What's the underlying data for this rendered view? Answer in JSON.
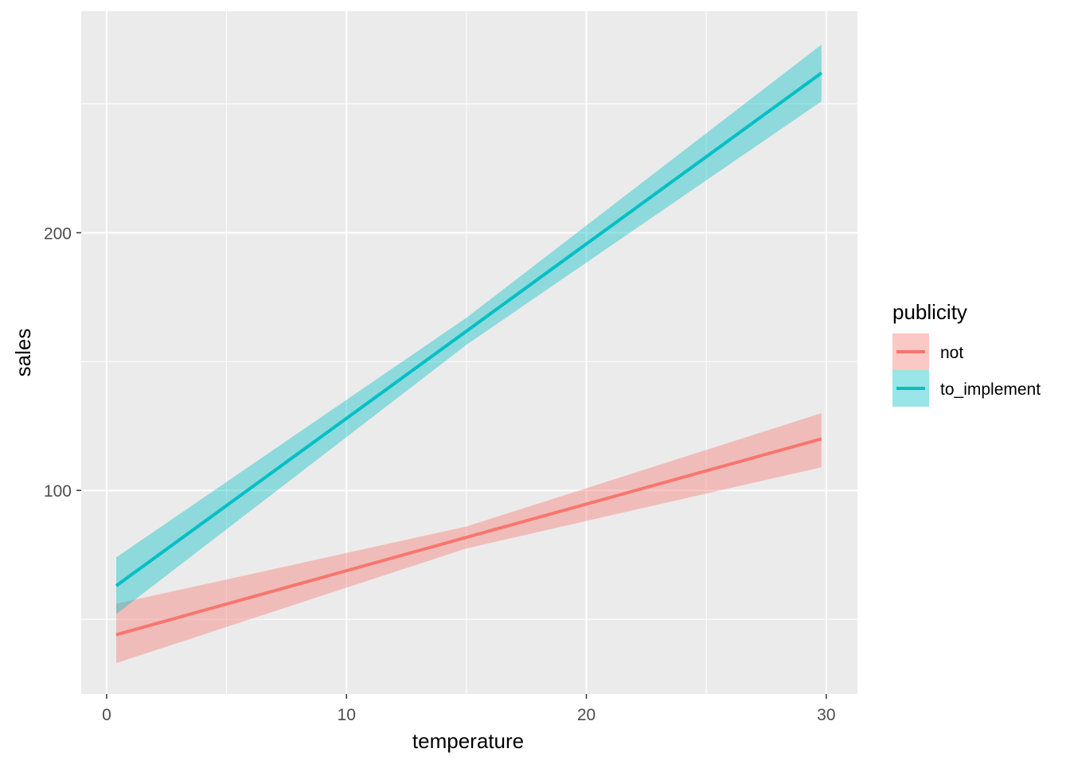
{
  "chart_data": {
    "type": "line",
    "title": "",
    "xlabel": "temperature",
    "ylabel": "sales",
    "xlim": [
      -1.06,
      31.3
    ],
    "ylim": [
      21,
      286
    ],
    "x_ticks": [
      0,
      10,
      20,
      30
    ],
    "x_tick_labels": [
      "0",
      "10",
      "20",
      "30"
    ],
    "x_minor": [
      5,
      15,
      25
    ],
    "y_ticks": [
      100,
      200
    ],
    "y_tick_labels": [
      "100",
      "200"
    ],
    "y_minor": [
      50,
      150,
      250
    ],
    "grid": true,
    "legend": {
      "title": "publicity",
      "placement": "right"
    },
    "series": [
      {
        "name": "not",
        "color": "#F8766D",
        "x": [
          0.4,
          15,
          29.8
        ],
        "y": [
          44,
          81.8,
          120
        ],
        "lower": [
          33,
          77.5,
          109
        ],
        "upper": [
          56,
          86,
          130
        ]
      },
      {
        "name": "to_implement",
        "color": "#00BFC4",
        "x": [
          0.4,
          15,
          29.8
        ],
        "y": [
          63,
          161.8,
          262
        ],
        "lower": [
          52,
          156.5,
          251
        ],
        "upper": [
          74,
          167,
          273
        ]
      }
    ]
  }
}
